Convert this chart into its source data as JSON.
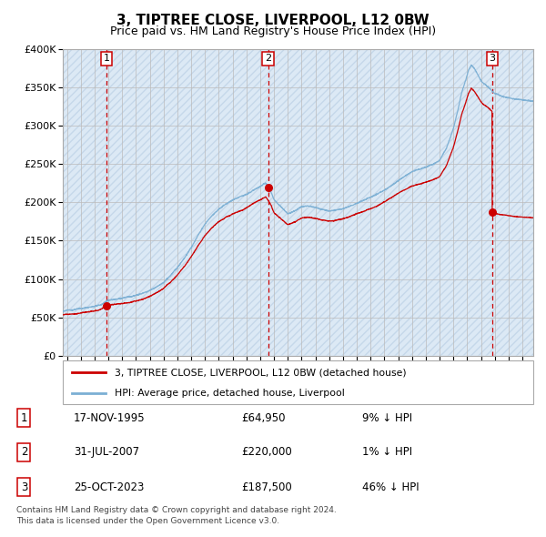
{
  "title": "3, TIPTREE CLOSE, LIVERPOOL, L12 0BW",
  "subtitle": "Price paid vs. HM Land Registry's House Price Index (HPI)",
  "yticks": [
    0,
    50000,
    100000,
    150000,
    200000,
    250000,
    300000,
    350000,
    400000
  ],
  "ytick_labels": [
    "£0",
    "£50K",
    "£100K",
    "£150K",
    "£200K",
    "£250K",
    "£300K",
    "£350K",
    "£400K"
  ],
  "hpi_color": "#7bafd4",
  "price_color": "#cc0000",
  "dot_color": "#cc0000",
  "vline_color": "#cc0000",
  "bg_color": "#dce9f5",
  "grid_color": "#bbbbbb",
  "sale_prices": [
    64950,
    220000,
    187500
  ],
  "sale_date_decimals": [
    1995.879,
    2007.579,
    2023.815
  ],
  "sale_labels": [
    "1",
    "2",
    "3"
  ],
  "sale_info": [
    {
      "date": "17-NOV-1995",
      "price": "£64,950",
      "hpi": "9% ↓ HPI"
    },
    {
      "date": "31-JUL-2007",
      "price": "£220,000",
      "hpi": "1% ↓ HPI"
    },
    {
      "date": "25-OCT-2023",
      "price": "£187,500",
      "hpi": "46% ↓ HPI"
    }
  ],
  "legend_line1": "3, TIPTREE CLOSE, LIVERPOOL, L12 0BW (detached house)",
  "legend_line2": "HPI: Average price, detached house, Liverpool",
  "footnote": "Contains HM Land Registry data © Crown copyright and database right 2024.\nThis data is licensed under the Open Government Licence v3.0.",
  "xlim_start": 1992.7,
  "xlim_end": 2026.8
}
